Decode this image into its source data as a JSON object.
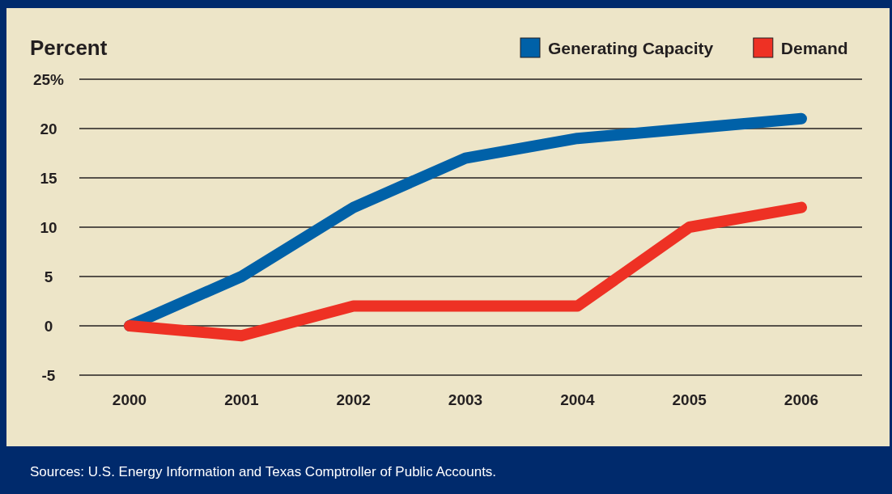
{
  "chart_data": {
    "type": "line",
    "ylabel": "Percent",
    "categories": [
      "2000",
      "2001",
      "2002",
      "2003",
      "2004",
      "2005",
      "2006"
    ],
    "series": [
      {
        "name": "Generating Capacity",
        "color": "#0061a8",
        "values": [
          0,
          5,
          12,
          17,
          19,
          20,
          21
        ]
      },
      {
        "name": "Demand",
        "color": "#ee3124",
        "values": [
          0,
          -1,
          2,
          2,
          2,
          10,
          12
        ]
      }
    ],
    "ylim": [
      -5,
      25
    ],
    "yticks": [
      -5,
      0,
      5,
      10,
      15,
      20,
      {
        "value": 25,
        "label": "25%"
      }
    ],
    "grid": "y",
    "legend": "top right",
    "marker": "none",
    "line_style": "solid",
    "annotations": [
      "Sources: U.S. Energy Information and Texas Comptroller of Public Accounts."
    ]
  }
}
